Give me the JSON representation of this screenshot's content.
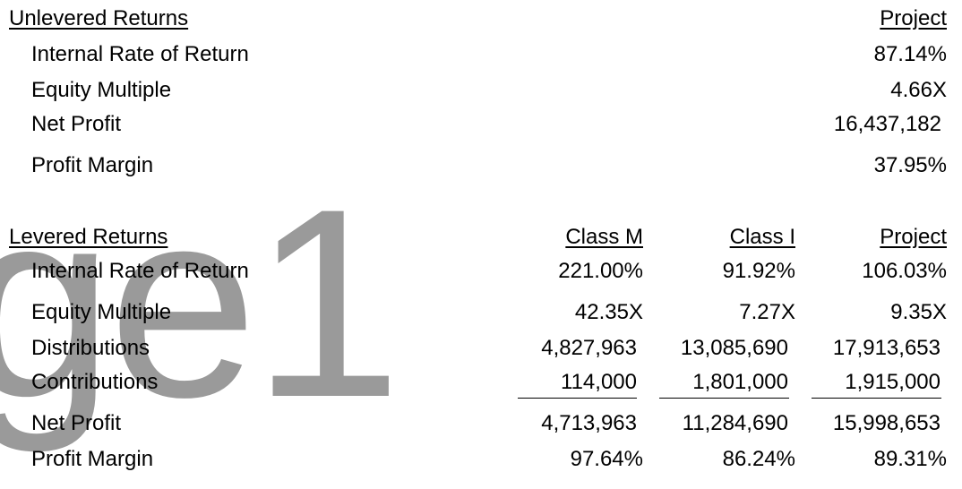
{
  "watermark": "ge1",
  "unlevered": {
    "header": "Unlevered Returns",
    "column": "Project",
    "rows": [
      {
        "label": "Internal Rate of Return",
        "value": "87.14%"
      },
      {
        "label": "Equity Multiple",
        "value": "4.66X"
      },
      {
        "label": "Net Profit",
        "value": "16,437,182"
      },
      {
        "label": "Profit Margin",
        "value": "37.95%"
      }
    ]
  },
  "levered": {
    "header": "Levered Returns",
    "columns": [
      "Class M",
      "Class I",
      "Project"
    ],
    "rows": [
      {
        "label": "Internal Rate of Return",
        "values": [
          "221.00%",
          "91.92%",
          "106.03%"
        ]
      },
      {
        "label": "Equity Multiple",
        "values": [
          "42.35X",
          "7.27X",
          "9.35X"
        ]
      },
      {
        "label": "Distributions",
        "values": [
          "4,827,963",
          "13,085,690",
          "17,913,653"
        ]
      },
      {
        "label": "Contributions",
        "values": [
          "114,000",
          "1,801,000",
          "1,915,000"
        ]
      },
      {
        "label": "Net Profit",
        "values": [
          "4,713,963",
          "11,284,690",
          "15,998,653"
        ]
      },
      {
        "label": "Profit Margin",
        "values": [
          "97.64%",
          "86.24%",
          "89.31%"
        ]
      }
    ]
  }
}
